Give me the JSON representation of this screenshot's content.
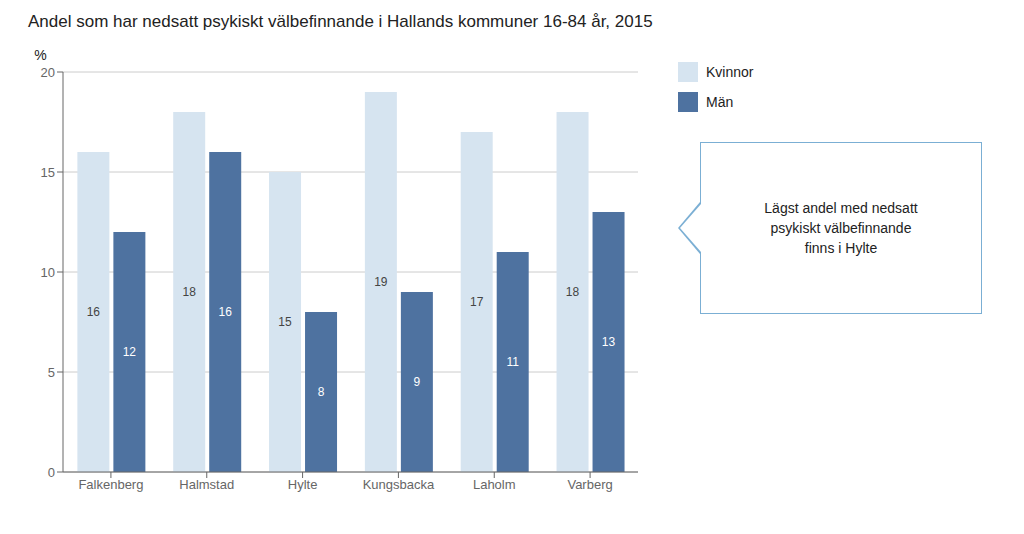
{
  "chart_data": {
    "type": "bar",
    "title": "Andel som har nedsatt psykiskt välbefinnande i Hallands kommuner 16-84 år, 2015",
    "categories": [
      "Falkenberg",
      "Halmstad",
      "Hylte",
      "Kungsbacka",
      "Laholm",
      "Varberg"
    ],
    "series": [
      {
        "name": "Kvinnor",
        "color": "#d6e4f0",
        "values": [
          16,
          18,
          15,
          19,
          17,
          18
        ]
      },
      {
        "name": "Män",
        "color": "#4e72a0",
        "values": [
          12,
          16,
          8,
          9,
          11,
          13
        ]
      }
    ],
    "ylabel": "%",
    "ylim": [
      0,
      20
    ],
    "yticks": [
      0,
      5,
      10,
      15,
      20
    ],
    "grid": true,
    "legend": "upper right",
    "data_labels": true,
    "annotation": "Lägst andel med nedsatt\npsykiskt välbefinnande\nfinns i Hylte"
  }
}
